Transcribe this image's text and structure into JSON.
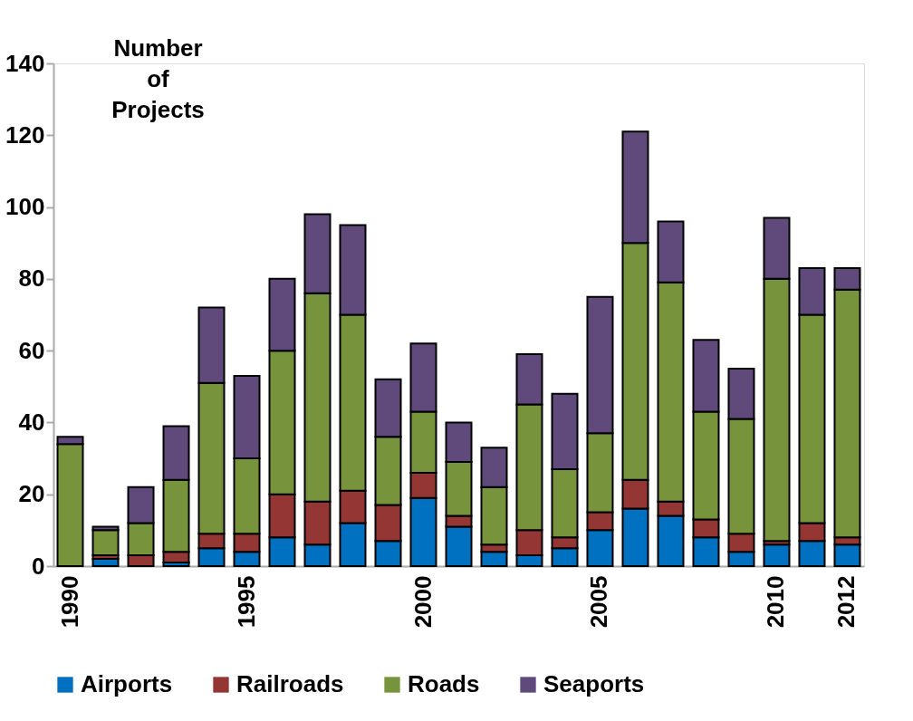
{
  "chart_data": {
    "type": "bar",
    "stacked": true,
    "ylabel": "Number\nof\nProjects",
    "categories": [
      "1990",
      null,
      null,
      null,
      null,
      "1995",
      null,
      null,
      null,
      null,
      "2000",
      null,
      null,
      null,
      null,
      "2005",
      null,
      null,
      null,
      null,
      "2010",
      null,
      "2012"
    ],
    "series": [
      {
        "name": "Airports",
        "color": "#0070c0",
        "values": [
          0,
          2,
          0,
          1,
          5,
          4,
          8,
          6,
          12,
          7,
          19,
          11,
          4,
          3,
          5,
          10,
          16,
          14,
          8,
          4,
          6,
          7,
          6
        ]
      },
      {
        "name": "Railroads",
        "color": "#943634",
        "values": [
          0,
          1,
          3,
          3,
          4,
          5,
          12,
          12,
          9,
          10,
          7,
          3,
          2,
          7,
          3,
          5,
          8,
          4,
          5,
          5,
          1,
          5,
          2
        ]
      },
      {
        "name": "Roads",
        "color": "#77933c",
        "values": [
          34,
          7,
          9,
          20,
          42,
          21,
          40,
          58,
          49,
          19,
          17,
          15,
          16,
          35,
          19,
          22,
          66,
          61,
          30,
          32,
          73,
          58,
          69
        ]
      },
      {
        "name": "Seaports",
        "color": "#604a7b",
        "values": [
          2,
          1,
          10,
          15,
          21,
          23,
          20,
          22,
          25,
          16,
          19,
          11,
          11,
          14,
          21,
          38,
          31,
          17,
          20,
          14,
          17,
          13,
          6
        ]
      }
    ],
    "ylim": [
      0,
      140
    ],
    "yticks": [
      0,
      20,
      40,
      60,
      80,
      100,
      120,
      140
    ],
    "grid": false,
    "legend": "bottom"
  }
}
